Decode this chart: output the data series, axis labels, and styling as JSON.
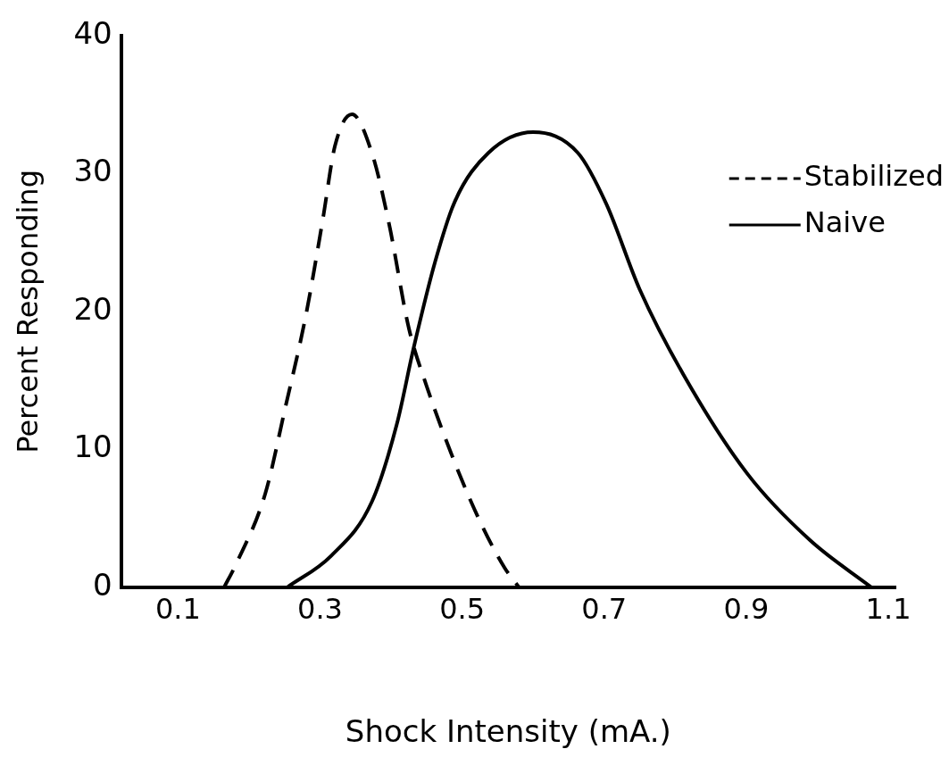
{
  "chart_data": {
    "type": "line",
    "xlabel": "Shock Intensity (mA.)",
    "ylabel": "Percent Responding",
    "xlim": [
      0.02,
      1.11
    ],
    "xticks": [
      0.1,
      0.3,
      0.5,
      0.7,
      0.9,
      1.1
    ],
    "ylim": [
      0,
      40
    ],
    "yticks": [
      0,
      10,
      20,
      30,
      40
    ],
    "grid": false,
    "legend": "top right",
    "marker": "none",
    "series": [
      {
        "name": "Stabilized",
        "color": "#000000",
        "line_style": "dashed",
        "x": [
          0.165,
          0.182,
          0.223,
          0.251,
          0.28,
          0.304,
          0.321,
          0.345,
          0.373,
          0.397,
          0.425,
          0.45,
          0.49,
          0.525,
          0.56,
          0.58
        ],
        "values": [
          0,
          1.7,
          6.8,
          13,
          19.7,
          26.7,
          32,
          34.3,
          31.5,
          26.4,
          18.8,
          14.6,
          9,
          4.8,
          1.4,
          0
        ]
      },
      {
        "name": "Naive",
        "color": "#000000",
        "line_style": "solid",
        "x": [
          0.254,
          0.316,
          0.373,
          0.408,
          0.432,
          0.462,
          0.49,
          0.537,
          0.6,
          0.663,
          0.703,
          0.75,
          0.814,
          0.902,
          0.99,
          1.076
        ],
        "values": [
          0,
          2.3,
          6.2,
          11.8,
          17.4,
          23.6,
          28,
          31.5,
          33,
          31.5,
          27.8,
          21.6,
          15.2,
          8.2,
          3.4,
          0
        ]
      }
    ]
  }
}
